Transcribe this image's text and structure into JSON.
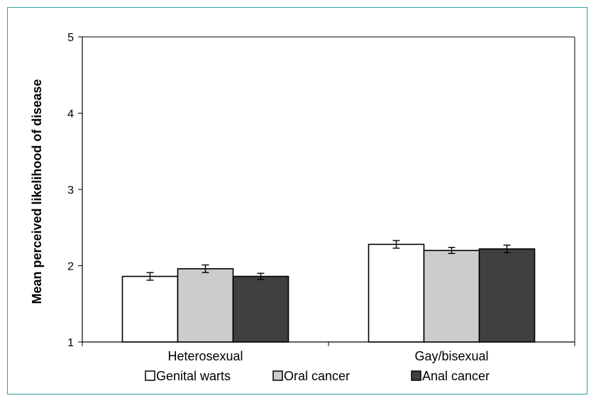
{
  "chart_data": {
    "type": "bar",
    "categories": [
      "Heterosexual",
      "Gay/bisexual"
    ],
    "series": [
      {
        "name": "Genital warts",
        "values": [
          1.86,
          2.28
        ],
        "errors": [
          0.05,
          0.05
        ],
        "color": "#ffffff"
      },
      {
        "name": "Oral cancer",
        "values": [
          1.96,
          2.2
        ],
        "errors": [
          0.05,
          0.04
        ],
        "color": "#cccccc"
      },
      {
        "name": "Anal cancer",
        "values": [
          1.86,
          2.22
        ],
        "errors": [
          0.04,
          0.05
        ],
        "color": "#404040"
      }
    ],
    "ylabel": "Mean perceived likelihood of disease",
    "xlabel": "",
    "ylim": [
      1,
      5
    ],
    "yticks": [
      "1",
      "2",
      "3",
      "4",
      "5"
    ],
    "grid": false,
    "legend": "bottom"
  }
}
